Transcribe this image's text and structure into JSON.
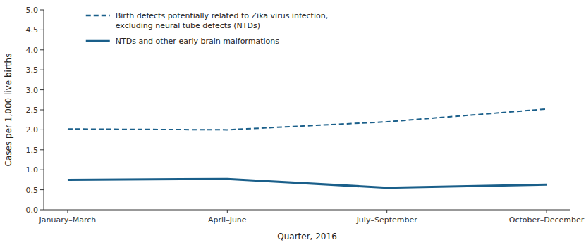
{
  "chart_data": {
    "type": "line",
    "categories": [
      "January–March",
      "April–June",
      "July–September",
      "October–December"
    ],
    "series": [
      {
        "name": "Birth defects potentially related to Zika virus infection,\nexcluding neural tube defects (NTDs)",
        "color": "#1a5f8a",
        "line_style": "dashed",
        "values": [
          2.02,
          2.0,
          2.2,
          2.52
        ]
      },
      {
        "name": "NTDs and other early brain malformations",
        "color": "#1a5f8a",
        "line_style": "solid",
        "values": [
          0.75,
          0.77,
          0.55,
          0.63
        ]
      }
    ],
    "xlabel": "Quarter, 2016",
    "ylabel": "Cases per 1,000 live births",
    "ylim": [
      0.0,
      5.0
    ],
    "yticks": [
      {
        "value": 0,
        "label": "0.0"
      },
      0.5,
      {
        "value": 1,
        "label": "1.0"
      },
      1.5,
      {
        "value": 2,
        "label": "2.0"
      },
      2.5,
      {
        "value": 3,
        "label": "3.0"
      },
      3.5,
      {
        "value": 4,
        "label": "4.0"
      },
      4.5,
      {
        "value": 5,
        "label": "5.0"
      }
    ],
    "grid": false,
    "legend": "upper left"
  }
}
